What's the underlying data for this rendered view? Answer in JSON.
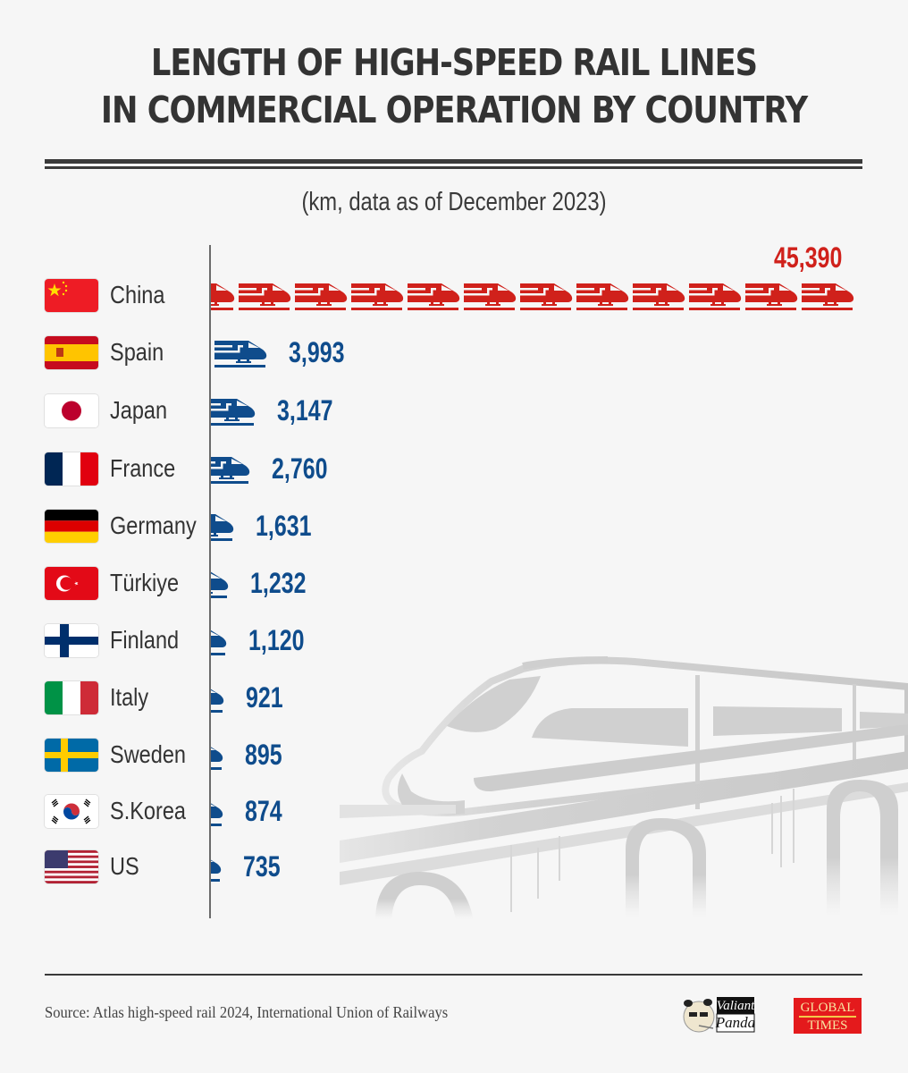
{
  "header": {
    "title_line1": "LENGTH OF HIGH-SPEED RAIL LINES",
    "title_line2": "IN COMMERCIAL OPERATION BY COUNTRY",
    "subtitle": "(km, data as of December 2023)"
  },
  "colors": {
    "background": "#f6f6f6",
    "highlight": "#d0211b",
    "bar": "#0f4c8c",
    "text": "#333333"
  },
  "rows": [
    {
      "country": "China",
      "value": 45390,
      "label": "45,390",
      "flag": "china-flag",
      "highlight": true
    },
    {
      "country": "Spain",
      "value": 3993,
      "label": "3,993",
      "flag": "spain-flag"
    },
    {
      "country": "Japan",
      "value": 3147,
      "label": "3,147",
      "flag": "japan-flag"
    },
    {
      "country": "France",
      "value": 2760,
      "label": "2,760",
      "flag": "france-flag"
    },
    {
      "country": "Germany",
      "value": 1631,
      "label": "1,631",
      "flag": "germany-flag"
    },
    {
      "country": "Türkiye",
      "value": 1232,
      "label": "1,232",
      "flag": "turkiye-flag"
    },
    {
      "country": "Finland",
      "value": 1120,
      "label": "1,120",
      "flag": "finland-flag"
    },
    {
      "country": "Italy",
      "value": 921,
      "label": "921",
      "flag": "italy-flag"
    },
    {
      "country": "Sweden",
      "value": 895,
      "label": "895",
      "flag": "sweden-flag"
    },
    {
      "country": "S.Korea",
      "value": 874,
      "label": "874",
      "flag": "south-korea-flag"
    },
    {
      "country": "US",
      "value": 735,
      "label": "735",
      "flag": "us-flag"
    }
  ],
  "footer": {
    "source": "Source: Atlas high-speed rail 2024, International Union of Railways",
    "logo1_line1": "Valiant",
    "logo1_line2": "Panda",
    "logo2_line1": "GLOBAL",
    "logo2_line2": "TIMES"
  },
  "chart_data": {
    "type": "bar",
    "orientation": "horizontal",
    "title": "LENGTH OF HIGH-SPEED RAIL LINES IN COMMERCIAL OPERATION BY COUNTRY",
    "subtitle": "(km, data as of December 2023)",
    "categories": [
      "China",
      "Spain",
      "Japan",
      "France",
      "Germany",
      "Türkiye",
      "Finland",
      "Italy",
      "Sweden",
      "S.Korea",
      "US"
    ],
    "values": [
      45390,
      3993,
      3147,
      2760,
      1631,
      1232,
      1120,
      921,
      895,
      874,
      735
    ],
    "xlabel": "",
    "ylabel": "",
    "unit": "km",
    "grid": false,
    "legend": null,
    "bar_style": "pictogram (train icons)",
    "highlight_category": "China",
    "source": "Source: Atlas high-speed rail 2024, International Union of Railways"
  }
}
